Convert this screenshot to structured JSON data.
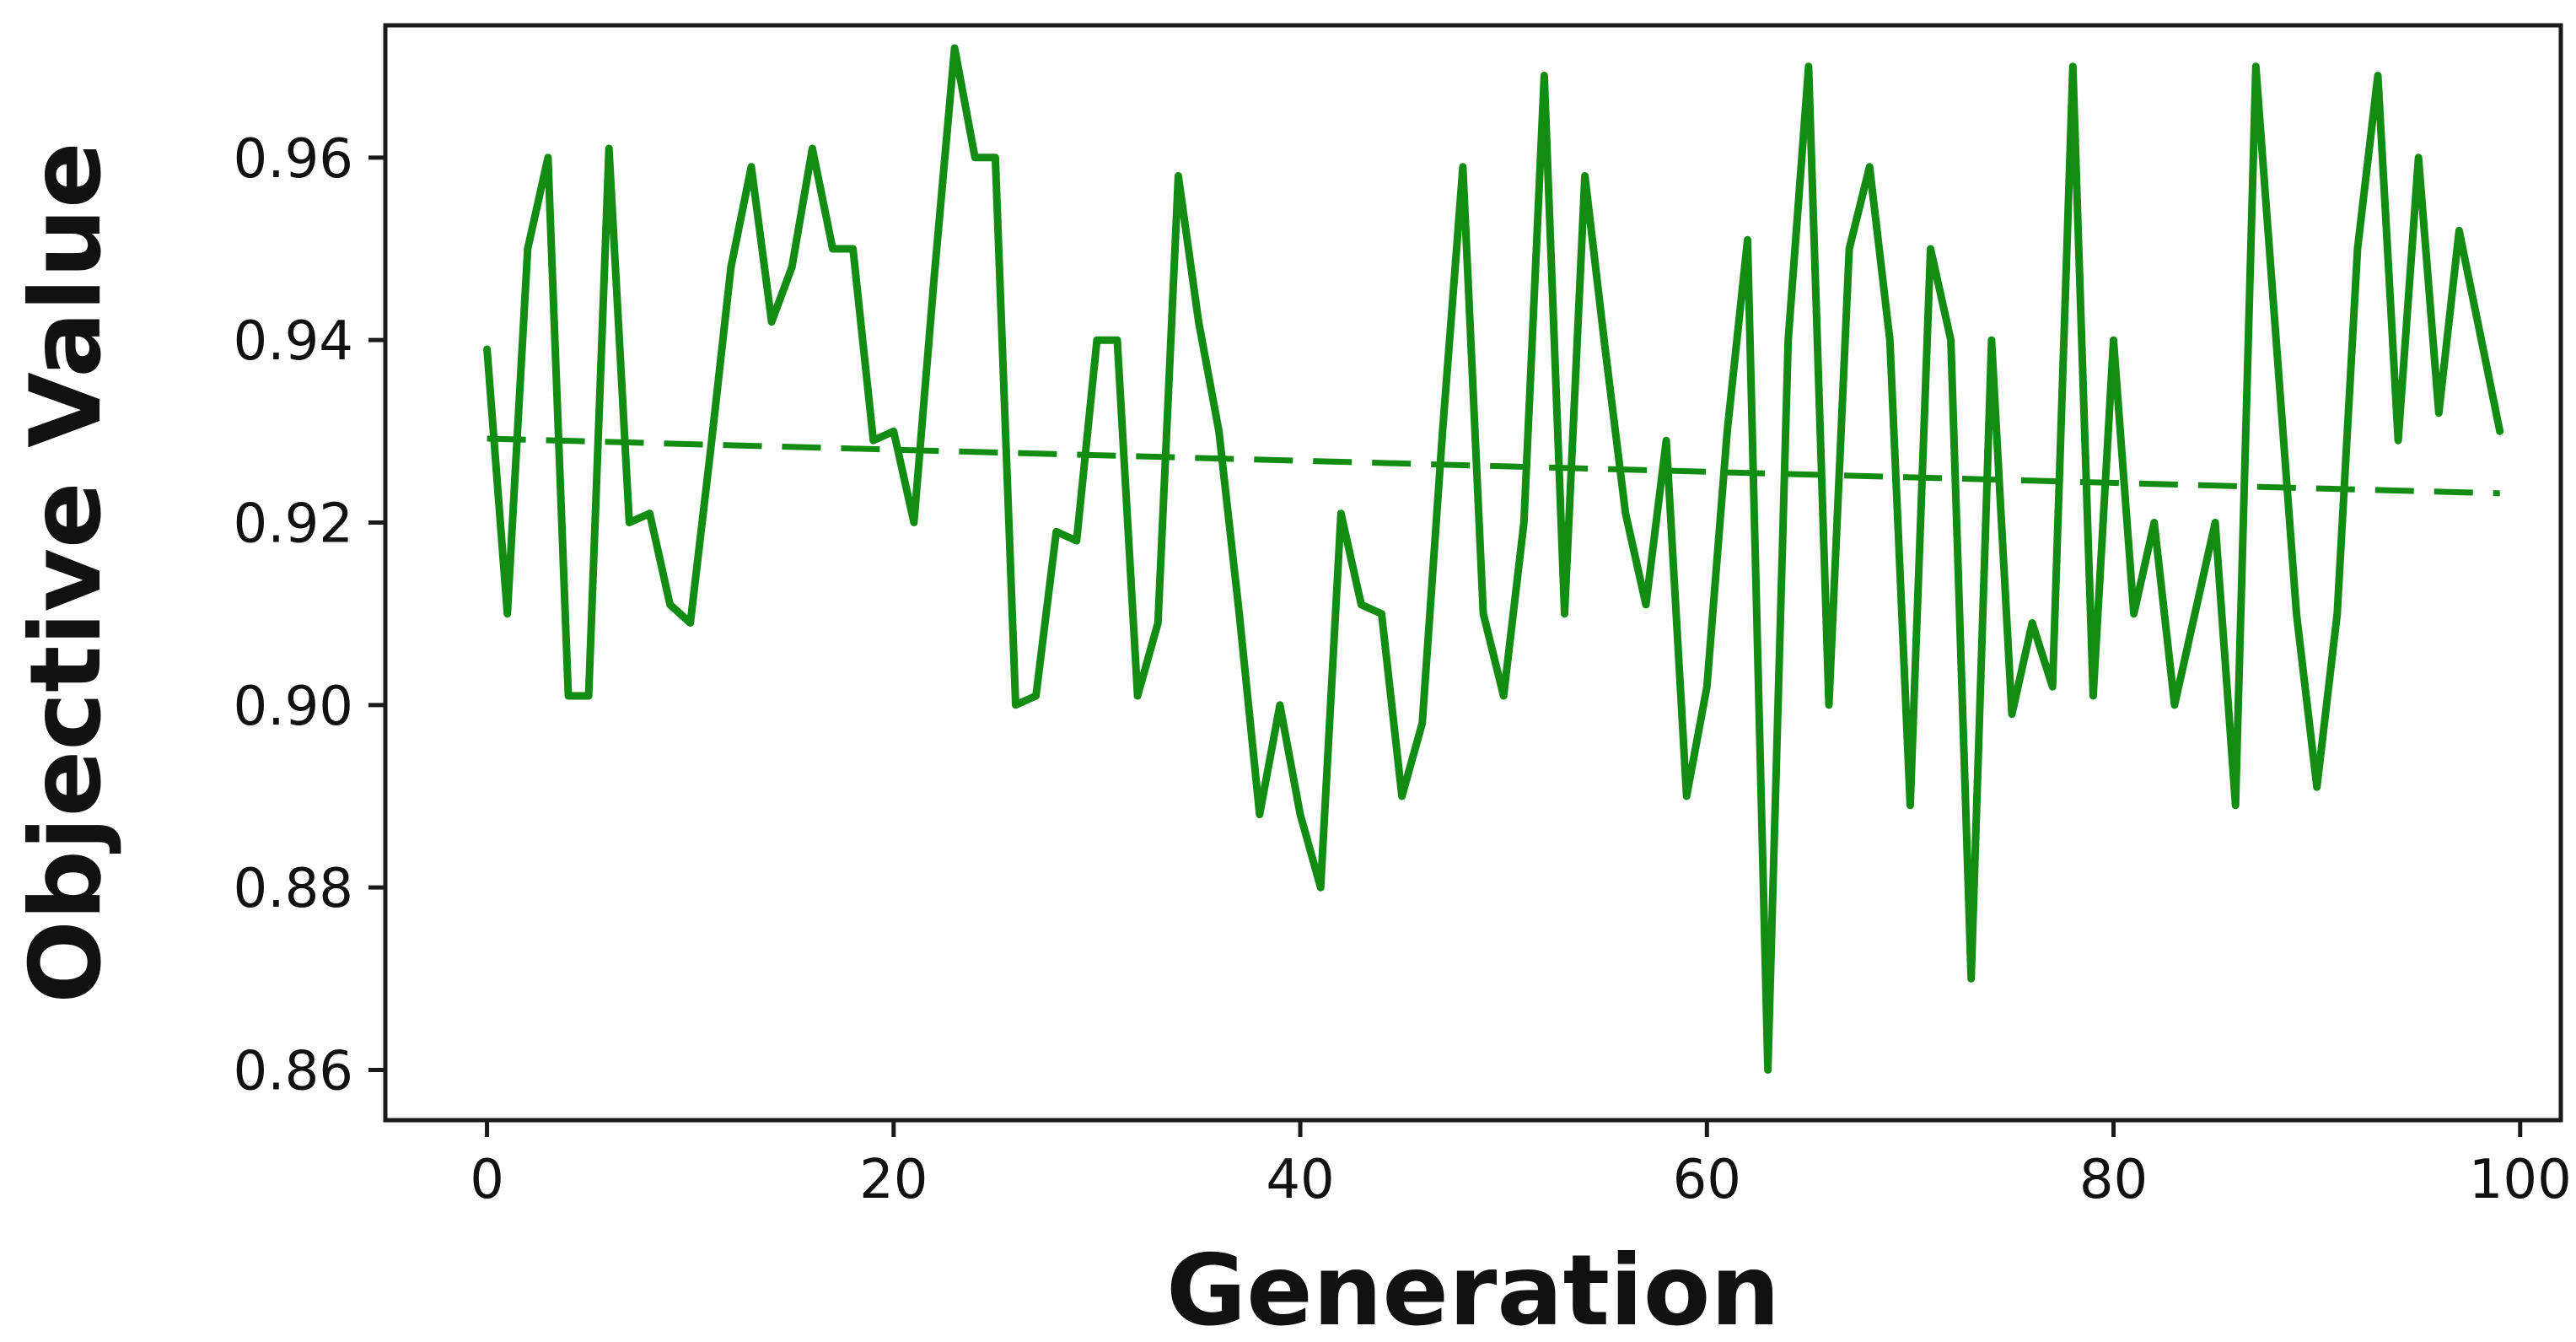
{
  "chart_data": {
    "type": "line",
    "title": "",
    "xlabel": "Generation",
    "ylabel": "Objective Value",
    "xlim": [
      -5,
      102
    ],
    "ylim": [
      0.8545,
      0.9745
    ],
    "xticks": [
      0,
      20,
      40,
      60,
      80,
      100
    ],
    "xtick_labels": [
      "0",
      "20",
      "40",
      "60",
      "80",
      "100"
    ],
    "yticks": [
      0.86,
      0.88,
      0.9,
      0.92,
      0.94,
      0.96
    ],
    "ytick_labels": [
      "0.86",
      "0.88",
      "0.90",
      "0.92",
      "0.94",
      "0.96"
    ],
    "grid": false,
    "legend": "none",
    "series": [
      {
        "style": "solid",
        "color": "#128c12",
        "x": [
          0,
          1,
          2,
          3,
          4,
          5,
          6,
          7,
          8,
          9,
          10,
          11,
          12,
          13,
          14,
          15,
          16,
          17,
          18,
          19,
          20,
          21,
          22,
          23,
          24,
          25,
          26,
          27,
          28,
          29,
          30,
          31,
          32,
          33,
          34,
          35,
          36,
          37,
          38,
          39,
          40,
          41,
          42,
          43,
          44,
          45,
          46,
          47,
          48,
          49,
          50,
          51,
          52,
          53,
          54,
          55,
          56,
          57,
          58,
          59,
          60,
          61,
          62,
          63,
          64,
          65,
          66,
          67,
          68,
          69,
          70,
          71,
          72,
          73,
          74,
          75,
          76,
          77,
          78,
          79,
          80,
          81,
          82,
          83,
          84,
          85,
          86,
          87,
          88,
          89,
          90,
          91,
          92,
          93,
          94,
          95,
          96,
          97,
          98,
          99
        ],
        "values": [
          0.939,
          0.91,
          0.95,
          0.96,
          0.901,
          0.901,
          0.961,
          0.92,
          0.921,
          0.911,
          0.909,
          0.928,
          0.948,
          0.959,
          0.942,
          0.948,
          0.961,
          0.95,
          0.95,
          0.929,
          0.93,
          0.92,
          0.947,
          0.972,
          0.96,
          0.96,
          0.9,
          0.901,
          0.919,
          0.918,
          0.94,
          0.94,
          0.901,
          0.909,
          0.958,
          0.942,
          0.93,
          0.91,
          0.888,
          0.9,
          0.888,
          0.88,
          0.921,
          0.911,
          0.91,
          0.89,
          0.898,
          0.93,
          0.959,
          0.91,
          0.901,
          0.92,
          0.969,
          0.91,
          0.958,
          0.939,
          0.921,
          0.911,
          0.929,
          0.89,
          0.902,
          0.93,
          0.951,
          0.86,
          0.94,
          0.97,
          0.9,
          0.95,
          0.959,
          0.94,
          0.889,
          0.95,
          0.94,
          0.87,
          0.94,
          0.899,
          0.909,
          0.902,
          0.97,
          0.901,
          0.94,
          0.91,
          0.92,
          0.9,
          0.91,
          0.92,
          0.889,
          0.97,
          0.94,
          0.91,
          0.891,
          0.91,
          0.95,
          0.969,
          0.929,
          0.96,
          0.932,
          0.952,
          0.941,
          0.93
        ]
      },
      {
        "style": "dashed",
        "color": "#128c12",
        "x": [
          0,
          99
        ],
        "values": [
          0.9292,
          0.9232
        ]
      }
    ]
  }
}
